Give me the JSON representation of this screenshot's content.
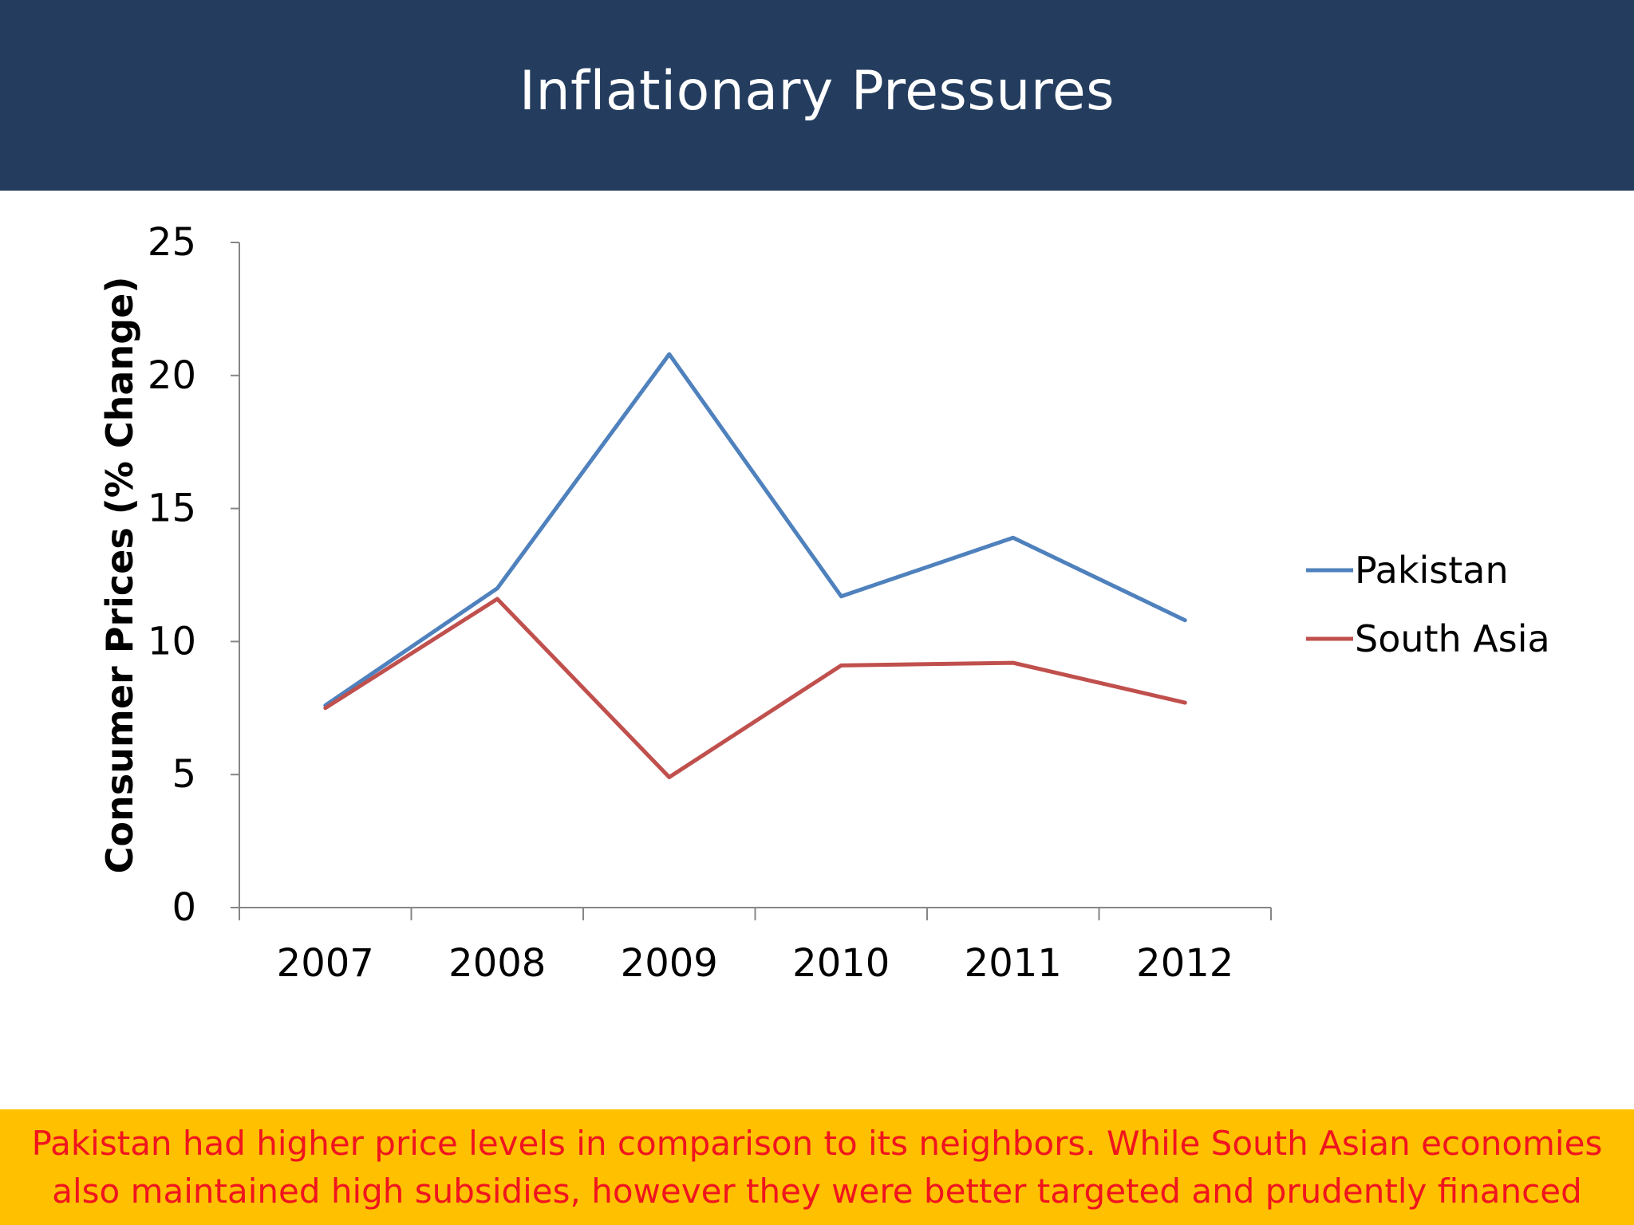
{
  "slide": {
    "title": "Inflationary Pressures",
    "footer_lines": [
      "Pakistan had higher price levels in comparison to its neighbors.  While South Asian economies",
      "also maintained high subsidies, however they were better targeted and prudently financed"
    ],
    "header_color": "#243d5f",
    "footer_bg_color": "#ffc000",
    "footer_text_color": "#f0141e"
  },
  "chart_data": {
    "type": "line",
    "title": "",
    "xlabel": "",
    "ylabel": "Consumer Prices (% Change)",
    "categories": [
      "2007",
      "2008",
      "2009",
      "2010",
      "2011",
      "2012"
    ],
    "ylim": [
      0,
      25
    ],
    "yticks": [
      0,
      5,
      10,
      15,
      20,
      25
    ],
    "grid": false,
    "legend_position": "right",
    "series": [
      {
        "name": "Pakistan",
        "color": "#4f81bd",
        "values": [
          7.6,
          12.0,
          20.8,
          11.7,
          13.9,
          10.8
        ]
      },
      {
        "name": "South Asia",
        "color": "#c0504d",
        "values": [
          7.5,
          11.6,
          4.9,
          9.1,
          9.2,
          7.7
        ]
      }
    ]
  }
}
